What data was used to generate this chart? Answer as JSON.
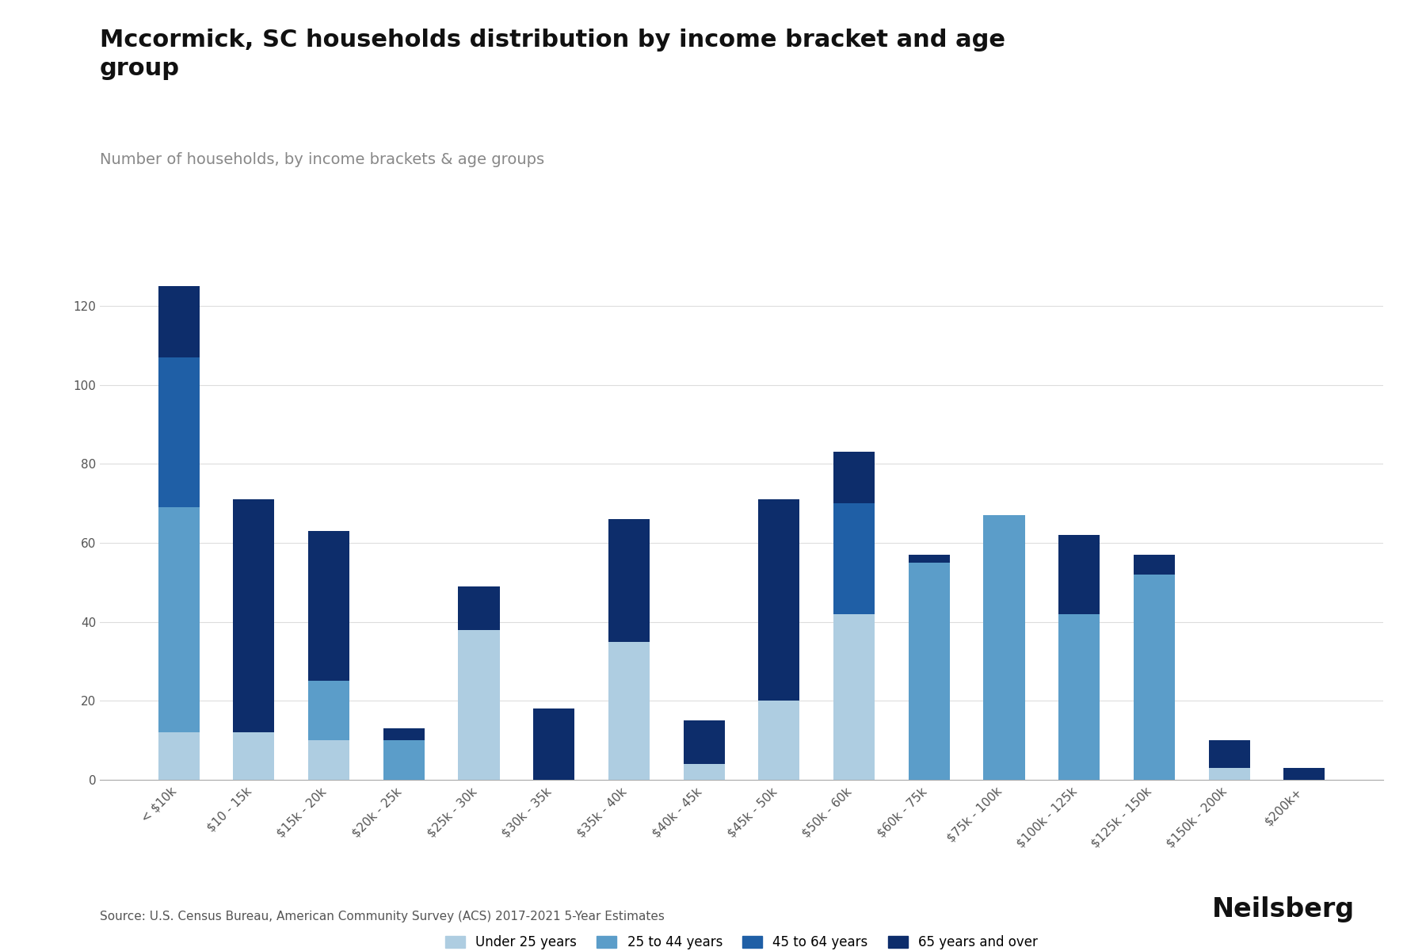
{
  "title": "Mccormick, SC households distribution by income bracket and age\ngroup",
  "subtitle": "Number of households, by income brackets & age groups",
  "source": "Source: U.S. Census Bureau, American Community Survey (ACS) 2017-2021 5-Year Estimates",
  "categories": [
    "< $10k",
    "$10 - 15k",
    "$15k - 20k",
    "$20k - 25k",
    "$25k - 30k",
    "$30k - 35k",
    "$35k - 40k",
    "$40k - 45k",
    "$45k - 50k",
    "$50k - 60k",
    "$60k - 75k",
    "$75k - 100k",
    "$100k - 125k",
    "$125k - 150k",
    "$150k - 200k",
    "$200k+"
  ],
  "age_groups": [
    "Under 25 years",
    "25 to 44 years",
    "45 to 64 years",
    "65 years and over"
  ],
  "colors": [
    "#aecde1",
    "#5b9dc9",
    "#1f5fa6",
    "#0d2d6b"
  ],
  "data": {
    "Under 25 years": [
      12,
      12,
      10,
      0,
      38,
      0,
      35,
      4,
      20,
      42,
      0,
      0,
      0,
      0,
      3,
      0
    ],
    "25 to 44 years": [
      57,
      0,
      15,
      10,
      0,
      0,
      0,
      0,
      0,
      0,
      55,
      67,
      42,
      52,
      0,
      0
    ],
    "45 to 64 years": [
      38,
      0,
      0,
      0,
      0,
      0,
      0,
      0,
      0,
      28,
      0,
      0,
      0,
      0,
      0,
      0
    ],
    "65 years and over": [
      18,
      59,
      38,
      3,
      11,
      18,
      31,
      11,
      51,
      13,
      2,
      0,
      20,
      5,
      7,
      3
    ]
  },
  "ylim": [
    0,
    130
  ],
  "yticks": [
    0,
    20,
    40,
    60,
    80,
    100,
    120
  ],
  "background_color": "#ffffff",
  "grid_color": "#dddddd",
  "title_fontsize": 22,
  "subtitle_fontsize": 14,
  "tick_fontsize": 11,
  "legend_fontsize": 12,
  "source_fontsize": 11,
  "bar_width": 0.55
}
